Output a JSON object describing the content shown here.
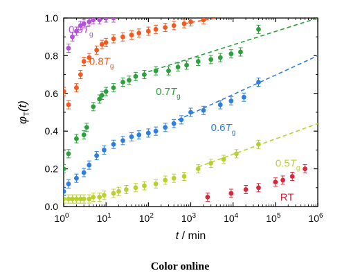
{
  "caption": "Color online",
  "chart_data": {
    "type": "scatter",
    "x_scale": "log",
    "x_ticks": [
      1,
      10,
      100,
      1000,
      10000,
      100000,
      1000000
    ],
    "xlim": [
      1,
      1000000
    ],
    "y_ticks": [
      0.0,
      0.2,
      0.4,
      0.6,
      0.8,
      1.0
    ],
    "ylim": [
      0,
      1
    ],
    "xlabel": "t / min",
    "ylabel": "φT(t)",
    "series": [
      {
        "name": "0.9Tg",
        "color": "#b64fd8",
        "label_x": 1.3,
        "label_y": 0.94,
        "points": [
          [
            1,
            0.61
          ],
          [
            1.3,
            0.84
          ],
          [
            1.6,
            0.9
          ],
          [
            2,
            0.93
          ],
          [
            2.5,
            0.96
          ],
          [
            3,
            0.97
          ],
          [
            4,
            0.98
          ],
          [
            5,
            0.99
          ],
          [
            7,
            0.99
          ],
          [
            10,
            1.0
          ],
          [
            15,
            1.0
          ]
        ],
        "fit": null
      },
      {
        "name": "0.8Tg",
        "color": "#f1591f",
        "label_x": 4,
        "label_y": 0.77,
        "points": [
          [
            1,
            0.61
          ],
          [
            1.3,
            0.54
          ],
          [
            2,
            0.63
          ],
          [
            2.5,
            0.7
          ],
          [
            3,
            0.77
          ],
          [
            4,
            0.79
          ],
          [
            6,
            0.83
          ],
          [
            8,
            0.86
          ],
          [
            10,
            0.87
          ],
          [
            15,
            0.89
          ],
          [
            25,
            0.9
          ],
          [
            40,
            0.91
          ],
          [
            60,
            0.92
          ],
          [
            100,
            0.93
          ],
          [
            150,
            0.94
          ],
          [
            250,
            0.95
          ],
          [
            400,
            0.96
          ],
          [
            700,
            0.97
          ],
          [
            1000,
            0.98
          ],
          [
            2000,
            0.99
          ]
        ],
        "fit": {
          "from": 700,
          "to": 4000,
          "y_from": 0.97,
          "y_to": 1.0
        }
      },
      {
        "name": "0.7Tg",
        "color": "#2ba13b",
        "label_x": 150,
        "label_y": 0.61,
        "points": [
          [
            1,
            0.2
          ],
          [
            1.3,
            0.28
          ],
          [
            2,
            0.36
          ],
          [
            3,
            0.38
          ],
          [
            3.5,
            0.42
          ],
          [
            5,
            0.53
          ],
          [
            7,
            0.57
          ],
          [
            8,
            0.59
          ],
          [
            10,
            0.61
          ],
          [
            15,
            0.63
          ],
          [
            25,
            0.66
          ],
          [
            35,
            0.67
          ],
          [
            50,
            0.69
          ],
          [
            80,
            0.7
          ],
          [
            150,
            0.72
          ],
          [
            300,
            0.72
          ],
          [
            500,
            0.74
          ],
          [
            800,
            0.75
          ],
          [
            1500,
            0.77
          ],
          [
            3000,
            0.78
          ],
          [
            5000,
            0.79
          ],
          [
            9000,
            0.81
          ],
          [
            15000,
            0.82
          ],
          [
            40000,
            0.94
          ]
        ],
        "fit": {
          "from": 100,
          "to": 1000000,
          "y_from": 0.715,
          "y_to": 1.0
        }
      },
      {
        "name": "0.6Tg",
        "color": "#2e7de0",
        "label_x": 3000,
        "label_y": 0.42,
        "points": [
          [
            1,
            0.08
          ],
          [
            1.3,
            0.12
          ],
          [
            2,
            0.15
          ],
          [
            3,
            0.18
          ],
          [
            4,
            0.22
          ],
          [
            6,
            0.27
          ],
          [
            9,
            0.3
          ],
          [
            15,
            0.33
          ],
          [
            25,
            0.35
          ],
          [
            40,
            0.37
          ],
          [
            60,
            0.38
          ],
          [
            100,
            0.39
          ],
          [
            150,
            0.4
          ],
          [
            250,
            0.42
          ],
          [
            400,
            0.44
          ],
          [
            600,
            0.46
          ],
          [
            1000,
            0.5
          ],
          [
            2000,
            0.51
          ],
          [
            5000,
            0.54
          ],
          [
            9000,
            0.56
          ],
          [
            18000,
            0.58
          ],
          [
            40000,
            0.66
          ]
        ],
        "fit": {
          "from": 500,
          "to": 1000000,
          "y_from": 0.46,
          "y_to": 0.8
        }
      },
      {
        "name": "0.5Tg",
        "color": "#b9d02f",
        "label_x": 100000,
        "label_y": 0.23,
        "points": [
          [
            1,
            0.04
          ],
          [
            1.3,
            0.04
          ],
          [
            1.6,
            0.04
          ],
          [
            2,
            0.04
          ],
          [
            2.5,
            0.04
          ],
          [
            3,
            0.04
          ],
          [
            4,
            0.04
          ],
          [
            5,
            0.05
          ],
          [
            7,
            0.05
          ],
          [
            9,
            0.06
          ],
          [
            15,
            0.07
          ],
          [
            20,
            0.08
          ],
          [
            30,
            0.09
          ],
          [
            50,
            0.1
          ],
          [
            80,
            0.11
          ],
          [
            150,
            0.12
          ],
          [
            250,
            0.14
          ],
          [
            400,
            0.15
          ],
          [
            700,
            0.16
          ],
          [
            1500,
            0.2
          ],
          [
            3000,
            0.23
          ],
          [
            6000,
            0.25
          ],
          [
            12000,
            0.28
          ],
          [
            40000,
            0.33
          ]
        ],
        "fit": {
          "from": 1500,
          "to": 1000000,
          "y_from": 0.21,
          "y_to": 0.44
        }
      },
      {
        "name": "RT",
        "color": "#d8263a",
        "label_x": 130000,
        "label_y": 0.05,
        "points": [
          [
            2500,
            0.05
          ],
          [
            9000,
            0.07
          ],
          [
            20000,
            0.09
          ],
          [
            40000,
            0.1
          ],
          [
            100000,
            0.13
          ],
          [
            150000,
            0.14
          ],
          [
            250000,
            0.16
          ],
          [
            500000,
            0.2
          ]
        ],
        "fit": null
      }
    ]
  }
}
